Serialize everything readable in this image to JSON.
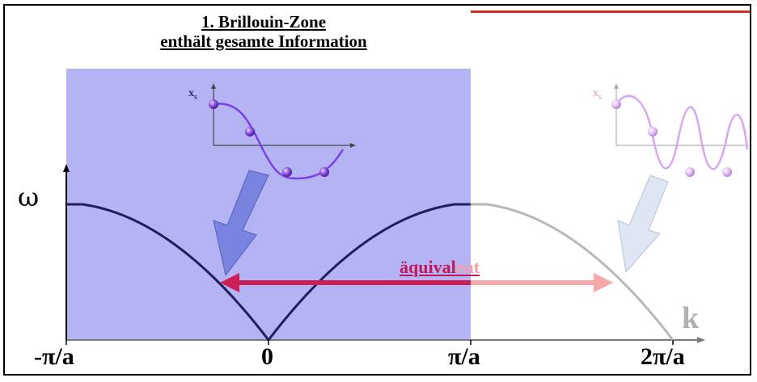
{
  "title": {
    "line1": "1. Brillouin-Zone",
    "line2": "enthält gesamte Information"
  },
  "axes": {
    "y_label": "ω",
    "x_label": "k",
    "tick_minus_pi_a": "-π/a",
    "tick_zero": "0",
    "tick_pi_a": "π/a",
    "tick_two_pi_a": "2π/a"
  },
  "inset_left": {
    "axis_label": "x",
    "axis_sub": "s"
  },
  "inset_right": {
    "axis_label": "x",
    "axis_sub": "s"
  },
  "equivalence": {
    "label_strong": "äquival",
    "label_faded": "ent"
  },
  "colors": {
    "zone_fill": "#b4b4f4",
    "curve_zone": "#1f1f5e",
    "curve_outside": "#b8b8b8",
    "arrow_strong": "#cc1f55",
    "arrow_faded": "#f6a7a7",
    "wave_left": "#7b3fe4",
    "wave_right": "#d9a6f3",
    "title_line": "#d32f1e"
  }
}
